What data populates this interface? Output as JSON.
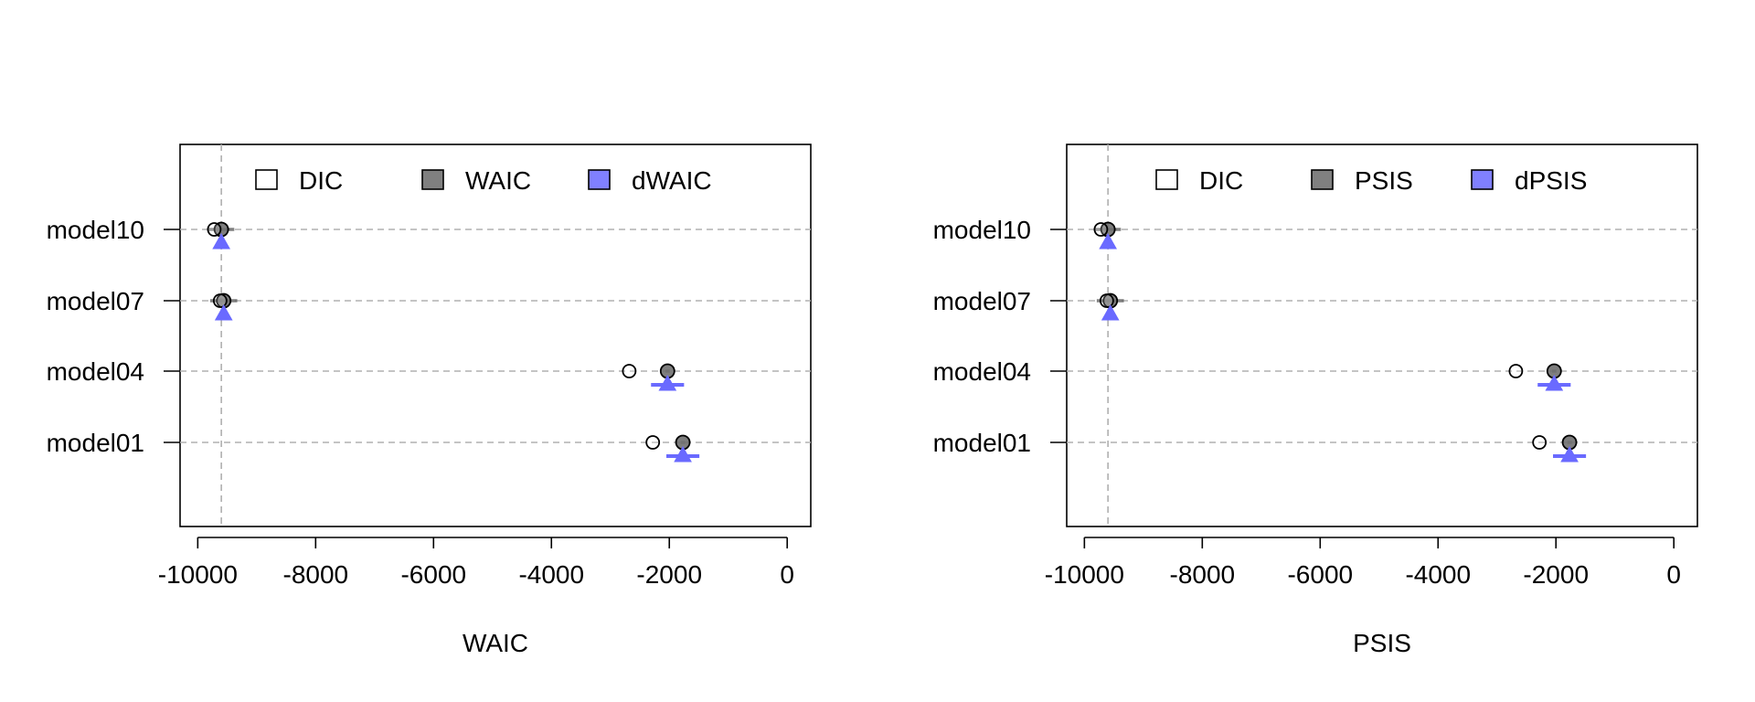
{
  "chart_data": [
    {
      "type": "scatter",
      "title": "",
      "xlabel": "WAIC",
      "ylabel": "",
      "xlim": [
        -10300,
        400
      ],
      "xticks": [
        -10000,
        -8000,
        -6000,
        -4000,
        -2000,
        0
      ],
      "xtick_labels": [
        "-10000",
        "-8000",
        "-6000",
        "-4000",
        "-2000",
        "0"
      ],
      "categories": [
        "model10",
        "model07",
        "model04",
        "model01"
      ],
      "reference_line_x": -9600,
      "grid": "dashed horizontal per category",
      "legend": [
        {
          "label": "DIC",
          "color": "#ffffff"
        },
        {
          "label": "WAIC",
          "color": "#808080"
        },
        {
          "label": "dWAIC",
          "color": "#8080ff"
        }
      ],
      "series": [
        {
          "name": "DIC",
          "values": [
            -9720,
            -9620,
            -2680,
            -2280
          ]
        },
        {
          "name": "WAIC",
          "values": [
            -9600,
            -9560,
            -2030,
            -1770
          ],
          "se": [
            220,
            230,
            40,
            40
          ]
        },
        {
          "name": "dWAIC",
          "values": [
            -9600,
            -9560,
            -2030,
            -1770
          ],
          "se": [
            50,
            60,
            280,
            280
          ]
        }
      ]
    },
    {
      "type": "scatter",
      "title": "",
      "xlabel": "PSIS",
      "ylabel": "",
      "xlim": [
        -10300,
        400
      ],
      "xticks": [
        -10000,
        -8000,
        -6000,
        -4000,
        -2000,
        0
      ],
      "xtick_labels": [
        "-10000",
        "-8000",
        "-6000",
        "-4000",
        "-2000",
        "0"
      ],
      "categories": [
        "model10",
        "model07",
        "model04",
        "model01"
      ],
      "reference_line_x": -9600,
      "grid": "dashed horizontal per category",
      "legend": [
        {
          "label": "DIC",
          "color": "#ffffff"
        },
        {
          "label": "PSIS",
          "color": "#808080"
        },
        {
          "label": "dPSIS",
          "color": "#8080ff"
        }
      ],
      "series": [
        {
          "name": "DIC",
          "values": [
            -9720,
            -9620,
            -2680,
            -2280
          ]
        },
        {
          "name": "PSIS",
          "values": [
            -9600,
            -9560,
            -2030,
            -1770
          ],
          "se": [
            220,
            230,
            40,
            40
          ]
        },
        {
          "name": "dPSIS",
          "values": [
            -9600,
            -9560,
            -2030,
            -1770
          ],
          "se": [
            50,
            60,
            280,
            280
          ]
        }
      ]
    }
  ]
}
